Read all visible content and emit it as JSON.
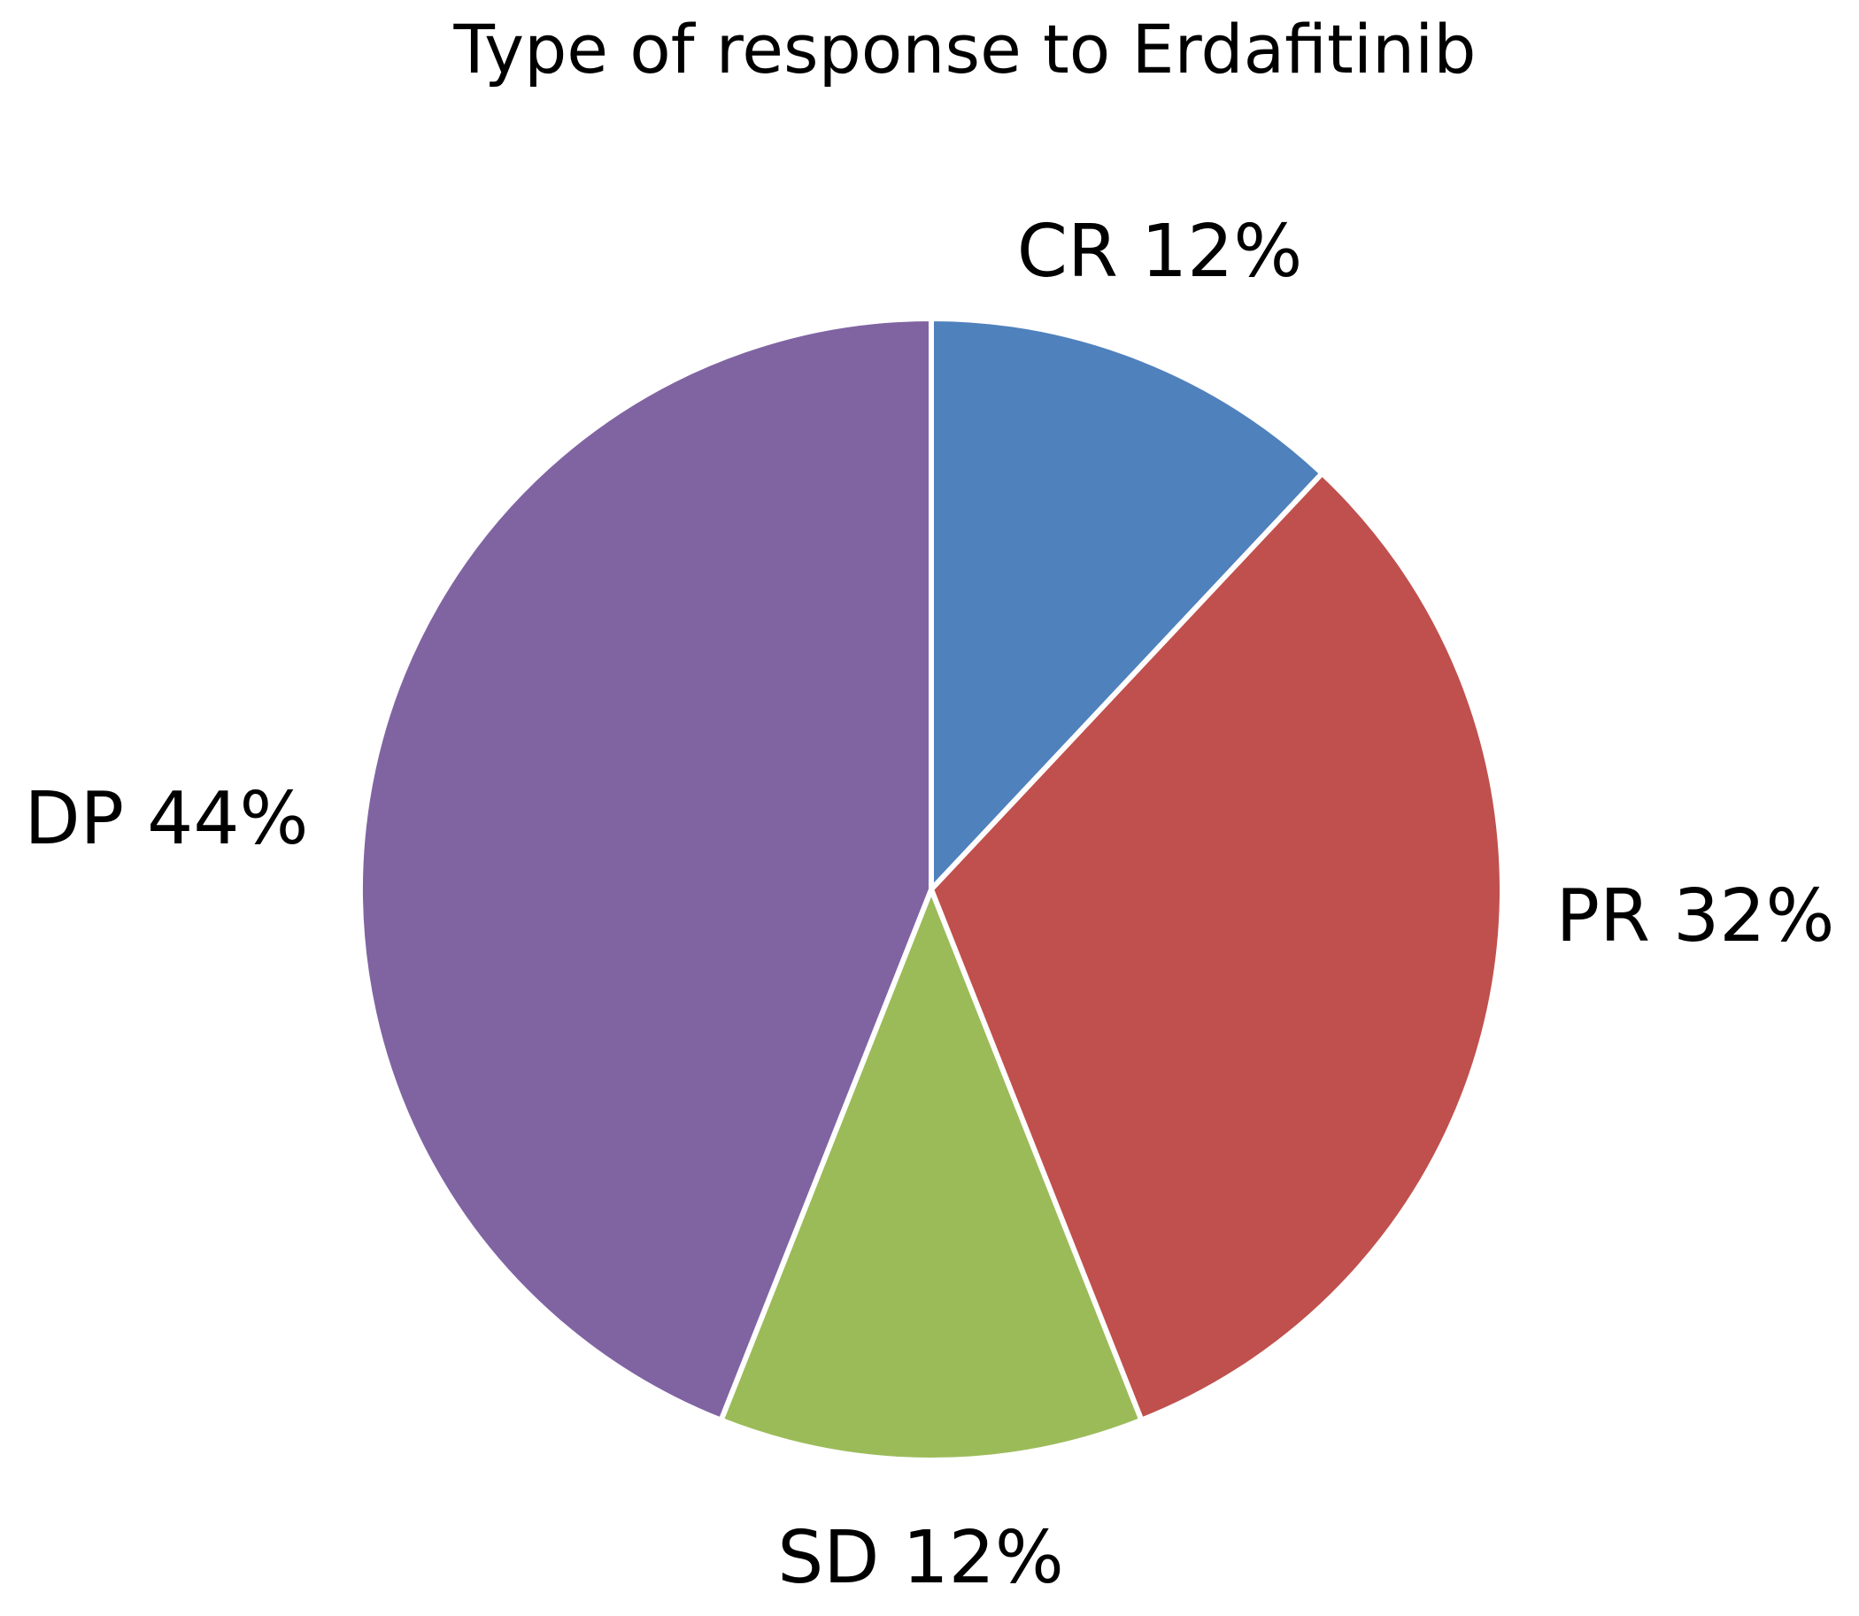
{
  "chart_data": {
    "type": "pie",
    "title": "Type of response to Erdafitinib",
    "start_angle_deg": 0,
    "direction": "clockwise",
    "slices": [
      {
        "key": "cr",
        "category": "CR",
        "value": 12,
        "label": "CR 12%",
        "color": "#4F81BD"
      },
      {
        "key": "pr",
        "category": "PR",
        "value": 32,
        "label": "PR 32%",
        "color": "#C0504D"
      },
      {
        "key": "sd",
        "category": "SD",
        "value": 12,
        "label": "SD 12%",
        "color": "#9BBB59"
      },
      {
        "key": "dp",
        "category": "DP",
        "value": 44,
        "label": "DP 44%",
        "color": "#8064A2"
      }
    ]
  }
}
